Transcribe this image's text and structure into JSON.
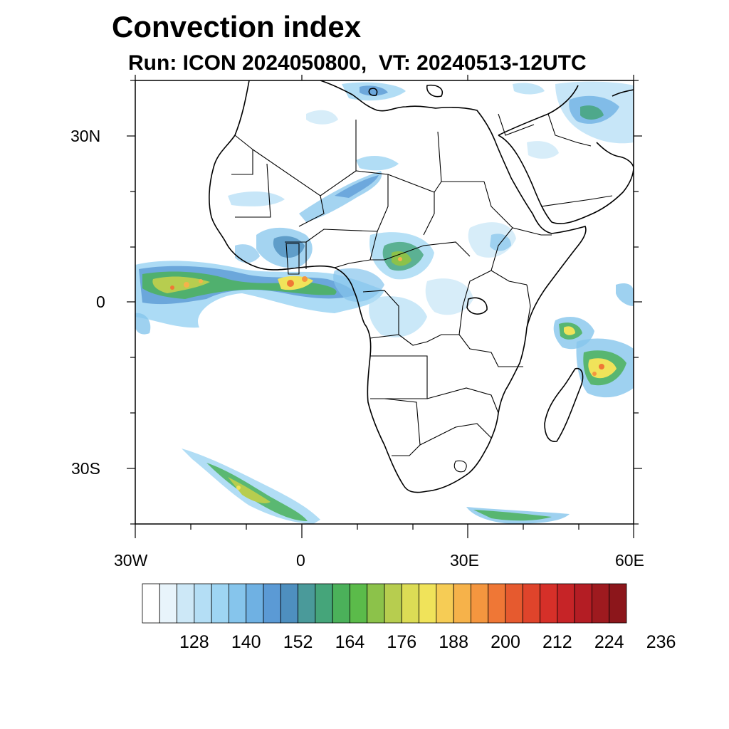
{
  "title": "Convection index",
  "subtitle": "Run: ICON 2024050800,  VT: 20240513-12UTC",
  "axes": {
    "lat_labels": [
      "30N",
      "0",
      "30S"
    ],
    "lon_labels": [
      "30W",
      "0",
      "30E",
      "60E"
    ]
  },
  "colorbar": {
    "colors": [
      "#ffffff",
      "#e8f4fb",
      "#cde8f7",
      "#b4def5",
      "#9ed5f3",
      "#86c5ec",
      "#6fb1e3",
      "#5b9ad5",
      "#4e8fbf",
      "#4a9a9a",
      "#45a57a",
      "#4bb15a",
      "#5bbb4a",
      "#8cc24a",
      "#b7cd4f",
      "#dcdc55",
      "#f0e35a",
      "#f6cc55",
      "#f6b24a",
      "#f4963f",
      "#ef7736",
      "#e65a2f",
      "#df442b",
      "#d63029",
      "#c62427",
      "#b41d24",
      "#9e1a1f",
      "#8c161b"
    ],
    "tick_labels": [
      "128",
      "140",
      "152",
      "164",
      "176",
      "188",
      "200",
      "212",
      "224",
      "236"
    ]
  }
}
